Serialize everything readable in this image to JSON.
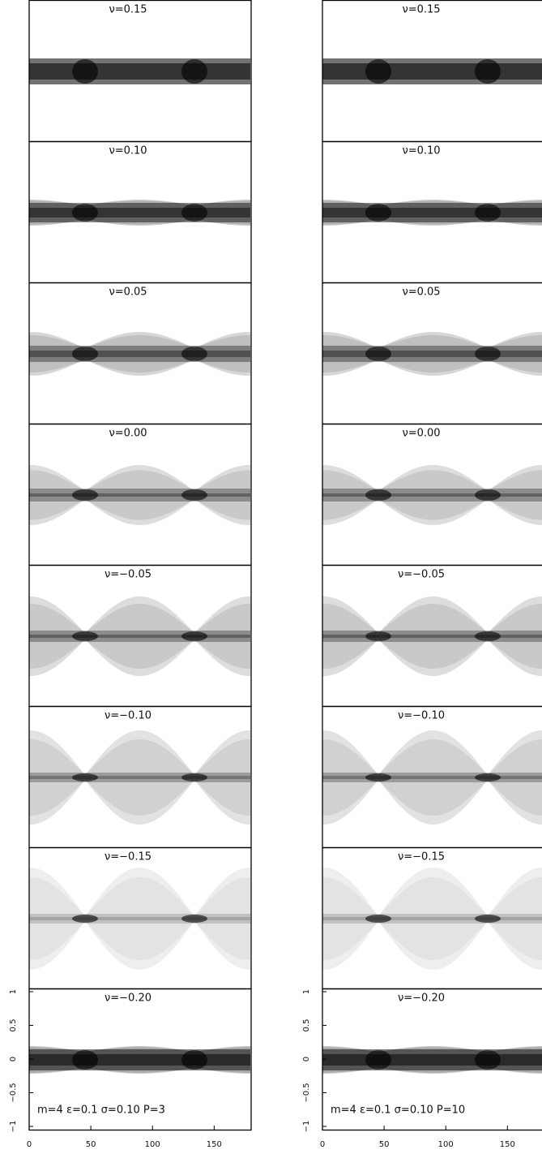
{
  "columns": [
    {
      "panels": [
        "ν=0.15",
        "ν=0.10",
        "ν=0.05",
        "ν=0.00",
        "ν=−0.05",
        "ν=−0.10",
        "ν=−0.15",
        "ν=−0.20"
      ],
      "annotation": "m=4 ε=0.1 σ=0.10 P=3",
      "yticks": [
        "1",
        "0.5",
        "0",
        "−0.5",
        "−1"
      ],
      "xticks": [
        "0",
        "50",
        "100",
        "150"
      ]
    },
    {
      "panels": [
        "ν=0.15",
        "ν=0.10",
        "ν=0.05",
        "ν=0.00",
        "ν=−0.05",
        "ν=−0.10",
        "ν=−0.15",
        "ν=−0.20"
      ],
      "annotation": "m=4 ε=0.1 σ=0.10 P=10",
      "yticks": [
        "1",
        "0.5",
        "0",
        "−0.5",
        "−1"
      ],
      "xticks": [
        "0",
        "50",
        "100",
        "150"
      ]
    }
  ]
}
